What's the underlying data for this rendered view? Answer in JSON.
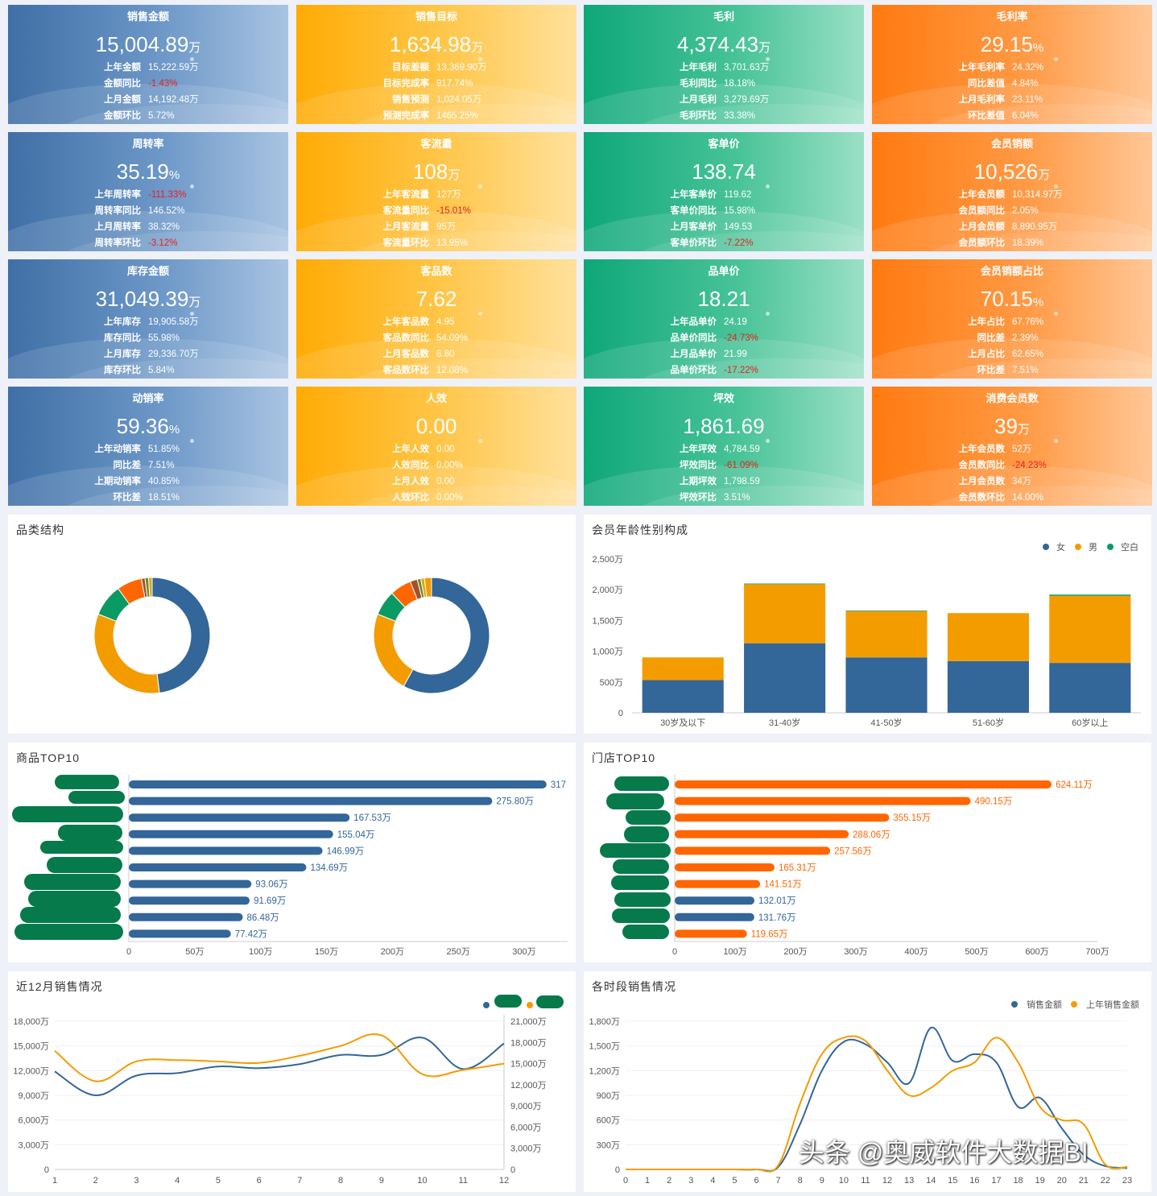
{
  "kpi_cards": [
    {
      "color": "blue",
      "title": "销售金额",
      "value": "15,004.89",
      "unit": "万",
      "rows": [
        {
          "label": "上年金额",
          "value": "15,222.59万",
          "neg": false
        },
        {
          "label": "金额同比",
          "value": "-1.43%",
          "neg": true
        },
        {
          "label": "上月金额",
          "value": "14,192.48万",
          "neg": false
        },
        {
          "label": "金额环比",
          "value": "5.72%",
          "neg": false
        }
      ]
    },
    {
      "color": "yellow",
      "title": "销售目标",
      "value": "1,634.98",
      "unit": "万",
      "rows": [
        {
          "label": "目标差额",
          "value": "13,369.90万",
          "neg": false
        },
        {
          "label": "目标完成率",
          "value": "917.74%",
          "neg": false
        },
        {
          "label": "销售预测",
          "value": "1,024.05万",
          "neg": false
        },
        {
          "label": "预测完成率",
          "value": "1465.25%",
          "neg": false
        }
      ]
    },
    {
      "color": "green",
      "title": "毛利",
      "value": "4,374.43",
      "unit": "万",
      "rows": [
        {
          "label": "上年毛利",
          "value": "3,701.63万",
          "neg": false
        },
        {
          "label": "毛利同比",
          "value": "18.18%",
          "neg": false
        },
        {
          "label": "上月毛利",
          "value": "3,279.69万",
          "neg": false
        },
        {
          "label": "毛利环比",
          "value": "33.38%",
          "neg": false
        }
      ]
    },
    {
      "color": "orange",
      "title": "毛利率",
      "value": "29.15",
      "unit": "%",
      "rows": [
        {
          "label": "上年毛利率",
          "value": "24.32%",
          "neg": false
        },
        {
          "label": "同比差值",
          "value": "4.84%",
          "neg": false
        },
        {
          "label": "上月毛利率",
          "value": "23.11%",
          "neg": false
        },
        {
          "label": "环比差值",
          "value": "6.04%",
          "neg": false
        }
      ]
    },
    {
      "color": "blue",
      "title": "周转率",
      "value": "35.19",
      "unit": "%",
      "rows": [
        {
          "label": "上年周转率",
          "value": "-111.33%",
          "neg": true
        },
        {
          "label": "周转率同比",
          "value": "146.52%",
          "neg": false
        },
        {
          "label": "上月周转率",
          "value": "38.32%",
          "neg": false
        },
        {
          "label": "周转率环比",
          "value": "-3.12%",
          "neg": true
        }
      ]
    },
    {
      "color": "yellow",
      "title": "客流量",
      "value": "108",
      "unit": "万",
      "rows": [
        {
          "label": "上年客流量",
          "value": "127万",
          "neg": false
        },
        {
          "label": "客流量同比",
          "value": "-15.01%",
          "neg": true
        },
        {
          "label": "上月客流量",
          "value": "95万",
          "neg": false
        },
        {
          "label": "客流量环比",
          "value": "13.95%",
          "neg": false
        }
      ]
    },
    {
      "color": "green",
      "title": "客单价",
      "value": "138.74",
      "unit": "",
      "rows": [
        {
          "label": "上年客单价",
          "value": "119.62",
          "neg": false
        },
        {
          "label": "客单价同比",
          "value": "15.98%",
          "neg": false
        },
        {
          "label": "上月客单价",
          "value": "149.53",
          "neg": false
        },
        {
          "label": "客单价环比",
          "value": "-7.22%",
          "neg": true
        }
      ]
    },
    {
      "color": "orange",
      "title": "会员销额",
      "value": "10,526",
      "unit": "万",
      "rows": [
        {
          "label": "上年会员额",
          "value": "10,314.97万",
          "neg": false
        },
        {
          "label": "会员额同比",
          "value": "2.05%",
          "neg": false
        },
        {
          "label": "上月会员额",
          "value": "8,890.95万",
          "neg": false
        },
        {
          "label": "会员额环比",
          "value": "18.39%",
          "neg": false
        }
      ]
    },
    {
      "color": "blue",
      "title": "库存金额",
      "value": "31,049.39",
      "unit": "万",
      "rows": [
        {
          "label": "上年库存",
          "value": "19,905.58万",
          "neg": false
        },
        {
          "label": "库存同比",
          "value": "55.98%",
          "neg": false
        },
        {
          "label": "上月库存",
          "value": "29,336.70万",
          "neg": false
        },
        {
          "label": "库存环比",
          "value": "5.84%",
          "neg": false
        }
      ]
    },
    {
      "color": "yellow",
      "title": "客品数",
      "value": "7.62",
      "unit": "",
      "rows": [
        {
          "label": "上年客品数",
          "value": "4.95",
          "neg": false
        },
        {
          "label": "客品数同比",
          "value": "54.09%",
          "neg": false
        },
        {
          "label": "上月客品数",
          "value": "6.80",
          "neg": false
        },
        {
          "label": "客品数环比",
          "value": "12.08%",
          "neg": false
        }
      ]
    },
    {
      "color": "green",
      "title": "品单价",
      "value": "18.21",
      "unit": "",
      "rows": [
        {
          "label": "上年品单价",
          "value": "24.19",
          "neg": false
        },
        {
          "label": "品单价同比",
          "value": "-24.73%",
          "neg": true
        },
        {
          "label": "上月品单价",
          "value": "21.99",
          "neg": false
        },
        {
          "label": "品单价环比",
          "value": "-17.22%",
          "neg": true
        }
      ]
    },
    {
      "color": "orange",
      "title": "会员销额占比",
      "value": "70.15",
      "unit": "%",
      "rows": [
        {
          "label": "上年占比",
          "value": "67.76%",
          "neg": false
        },
        {
          "label": "同比差",
          "value": "2.39%",
          "neg": false
        },
        {
          "label": "上月占比",
          "value": "62.65%",
          "neg": false
        },
        {
          "label": "环比差",
          "value": "7.51%",
          "neg": false
        }
      ]
    },
    {
      "color": "blue",
      "title": "动销率",
      "value": "59.36",
      "unit": "%",
      "rows": [
        {
          "label": "上年动销率",
          "value": "51.85%",
          "neg": false
        },
        {
          "label": "同比差",
          "value": "7.51%",
          "neg": false
        },
        {
          "label": "上期动销率",
          "value": "40.85%",
          "neg": false
        },
        {
          "label": "环比差",
          "value": "18.51%",
          "neg": false
        }
      ]
    },
    {
      "color": "yellow",
      "title": "人效",
      "value": "0.00",
      "unit": "",
      "rows": [
        {
          "label": "上年人效",
          "value": "0.00",
          "neg": false
        },
        {
          "label": "人效同比",
          "value": "0.00%",
          "neg": false
        },
        {
          "label": "上月人效",
          "value": "0.00",
          "neg": false
        },
        {
          "label": "人效环比",
          "value": "0.00%",
          "neg": false
        }
      ]
    },
    {
      "color": "green",
      "title": "坪效",
      "value": "1,861.69",
      "unit": "",
      "rows": [
        {
          "label": "上年坪效",
          "value": "4,784.59",
          "neg": false
        },
        {
          "label": "坪效同比",
          "value": "-61.09%",
          "neg": true
        },
        {
          "label": "上期坪效",
          "value": "1,798.59",
          "neg": false
        },
        {
          "label": "坪效环比",
          "value": "3.51%",
          "neg": false
        }
      ]
    },
    {
      "color": "orange",
      "title": "消费会员数",
      "value": "39",
      "unit": "万",
      "rows": [
        {
          "label": "上年会员数",
          "value": "52万",
          "neg": false
        },
        {
          "label": "会员数同比",
          "value": "-24.23%",
          "neg": true
        },
        {
          "label": "上月会员数",
          "value": "34万",
          "neg": false
        },
        {
          "label": "会员数环比",
          "value": "14.00%",
          "neg": false
        }
      ]
    }
  ],
  "panels": {
    "category": {
      "title": "品类结构"
    },
    "member_age": {
      "title": "会员年龄性别构成"
    },
    "product_top10": {
      "title": "商品TOP10"
    },
    "store_top10": {
      "title": "门店TOP10"
    },
    "monthly": {
      "title": "近12月销售情况"
    },
    "hourly": {
      "title": "各时段销售情况"
    }
  },
  "watermark": "头条 @奥威软件大数据BI",
  "colors": {
    "blue": "#336699",
    "yellow": "#f39c00",
    "green": "#0a9a63",
    "orange": "#ff6600",
    "negative": "#e8201e"
  },
  "chart_data": [
    {
      "id": "category",
      "type": "pie",
      "donuts": [
        {
          "values": [
            48,
            33,
            9,
            7,
            1,
            1,
            1
          ]
        },
        {
          "values": [
            58,
            23,
            7,
            6,
            2,
            1,
            1,
            2
          ]
        }
      ],
      "colors": [
        "#336699",
        "#f39c00",
        "#0a9a63",
        "#ff6600",
        "#a0522d",
        "#6b8e23",
        "#daa520",
        "#f39c00"
      ]
    },
    {
      "id": "member_age",
      "type": "bar",
      "stacked": true,
      "categories": [
        "30岁及以下",
        "31-40岁",
        "41-50岁",
        "51-60岁",
        "60岁以上"
      ],
      "series": [
        {
          "name": "女",
          "color": "#336699",
          "values": [
            530,
            1130,
            900,
            840,
            810
          ]
        },
        {
          "name": "男",
          "color": "#f39c00",
          "values": [
            370,
            960,
            750,
            780,
            1090
          ]
        },
        {
          "name": "空白",
          "color": "#0a9a63",
          "values": [
            0,
            10,
            10,
            0,
            20
          ]
        }
      ],
      "yticks": [
        "0",
        "500万",
        "1,000万",
        "1,500万",
        "2,000万",
        "2,500万"
      ],
      "ylim": [
        0,
        2500
      ],
      "legend": "top-right"
    },
    {
      "id": "product_top10",
      "type": "bar",
      "orientation": "horizontal",
      "color": "#336699",
      "values": [
        317,
        275.8,
        167.53,
        155.04,
        146.99,
        134.69,
        93.06,
        91.69,
        86.48,
        77.42
      ],
      "labels": [
        "317",
        "275.80万",
        "167.53万",
        "155.04万",
        "146.99万",
        "134.69万",
        "93.06万",
        "91.69万",
        "86.48万",
        "77.42万"
      ],
      "xticks": [
        "0",
        "50万",
        "100万",
        "150万",
        "200万",
        "250万",
        "300万"
      ],
      "xlim": [
        0,
        333
      ]
    },
    {
      "id": "store_top10",
      "type": "bar",
      "orientation": "horizontal",
      "values": [
        624.11,
        490.15,
        355.15,
        288.06,
        257.56,
        165.31,
        141.51,
        132.01,
        131.76,
        119.65
      ],
      "labels": [
        "624.11万",
        "490.15万",
        "355.15万",
        "288.06万",
        "257.56万",
        "165.31万",
        "141.51万",
        "132.01万",
        "131.76万",
        "119.65万"
      ],
      "bar_colors": [
        "#ff6600",
        "#ff6600",
        "#ff6600",
        "#ff6600",
        "#ff6600",
        "#ff6600",
        "#ff6600",
        "#336699",
        "#336699",
        "#ff6600"
      ],
      "label_colors": [
        "#ff6600",
        "#ff6600",
        "#ff6600",
        "#ff6600",
        "#ff6600",
        "#ff6600",
        "#ff6600",
        "#336699",
        "#336699",
        "#ff6600"
      ],
      "xticks": [
        "0",
        "100万",
        "200万",
        "300万",
        "400万",
        "500万",
        "600万",
        "700万"
      ],
      "xlim": [
        0,
        700
      ]
    },
    {
      "id": "monthly",
      "type": "line",
      "x": [
        1,
        2,
        3,
        4,
        5,
        6,
        7,
        8,
        9,
        10,
        11,
        12
      ],
      "series": [
        {
          "color": "#336699",
          "axis": "left",
          "values": [
            11900,
            9000,
            11400,
            11700,
            12500,
            12300,
            12800,
            13900,
            13900,
            16000,
            12200,
            15300
          ]
        },
        {
          "color": "#f39c00",
          "axis": "right",
          "values": [
            16800,
            12500,
            15300,
            15500,
            15300,
            15100,
            16100,
            17500,
            19000,
            13500,
            14100,
            15000
          ]
        }
      ],
      "yticks_left": [
        "0",
        "3,000万",
        "6,000万",
        "9,000万",
        "12,000万",
        "15,000万",
        "18,000万"
      ],
      "ylim_left": [
        0,
        18000
      ],
      "yticks_right": [
        "0",
        "3,000万",
        "6,000万",
        "9,000万",
        "12,000万",
        "15,000万",
        "18,000万",
        "21,000万"
      ],
      "ylim_right": [
        0,
        21000
      ],
      "legend": "top-right"
    },
    {
      "id": "hourly",
      "type": "line",
      "x": [
        0,
        1,
        2,
        3,
        4,
        5,
        6,
        7,
        8,
        9,
        10,
        11,
        12,
        13,
        14,
        15,
        16,
        17,
        18,
        19,
        20,
        21,
        22,
        23
      ],
      "series": [
        {
          "name": "销售金额",
          "color": "#336699",
          "values": [
            0,
            0,
            0,
            0,
            0,
            0,
            0,
            30,
            550,
            1200,
            1550,
            1520,
            1300,
            1050,
            1720,
            1320,
            1400,
            1300,
            760,
            870,
            500,
            180,
            40,
            20
          ]
        },
        {
          "name": "上年销售金额",
          "color": "#f39c00",
          "values": [
            0,
            0,
            0,
            0,
            0,
            0,
            0,
            50,
            800,
            1400,
            1600,
            1560,
            1200,
            900,
            990,
            1200,
            1300,
            1600,
            1300,
            760,
            600,
            550,
            60,
            30
          ]
        }
      ],
      "yticks": [
        "0",
        "300万",
        "600万",
        "900万",
        "1,200万",
        "1,500万",
        "1,800万"
      ],
      "ylim": [
        0,
        1800
      ],
      "legend": "top-right"
    }
  ]
}
